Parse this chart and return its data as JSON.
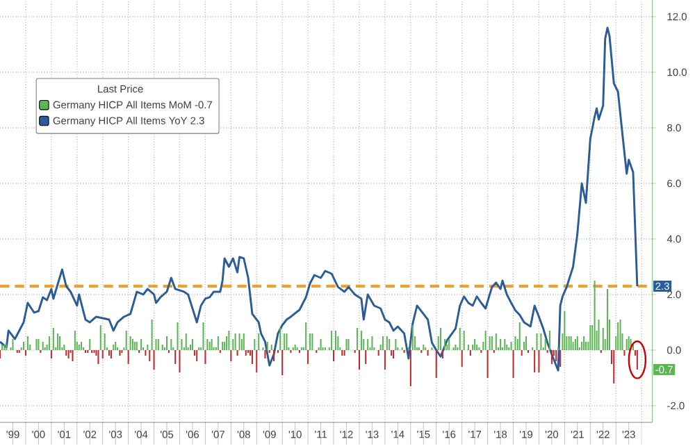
{
  "chart_data": {
    "type": "line",
    "legend_title": "Last Price",
    "legend": "top left",
    "grid": true,
    "xlim": [
      "1999-01",
      "2024-06"
    ],
    "ylim": [
      -2.6,
      12.6
    ],
    "xticks": [
      {
        "value": "2000",
        "label": null
      },
      {
        "value": "2001",
        "label": null
      },
      {
        "value": "2002",
        "label": null
      },
      {
        "value": "2003",
        "label": null
      },
      {
        "value": "2004",
        "label": null
      },
      {
        "value": "2005",
        "label": null
      },
      {
        "value": "2006",
        "label": null
      },
      {
        "value": "2007",
        "label": null
      },
      {
        "value": "2008",
        "label": null
      },
      {
        "value": "2009",
        "label": null
      },
      {
        "value": "2010",
        "label": null
      },
      {
        "value": "2011",
        "label": null
      },
      {
        "value": "2012",
        "label": null
      },
      {
        "value": "2013",
        "label": null
      },
      {
        "value": "2014",
        "label": null
      },
      {
        "value": "2015",
        "label": null
      },
      {
        "value": "2016",
        "label": null
      },
      {
        "value": "2017",
        "label": null
      },
      {
        "value": "2018",
        "label": null
      },
      {
        "value": "2019",
        "label": null
      },
      {
        "value": "2020",
        "label": null
      },
      {
        "value": "2021",
        "label": null
      },
      {
        "value": "2022",
        "label": null
      },
      {
        "value": "2023",
        "label": null
      },
      {
        "value": "2024",
        "label": null
      },
      {
        "value": "1999-07",
        "label": "'99"
      },
      {
        "value": "2000-07",
        "label": "'00"
      },
      {
        "value": "2001-07",
        "label": "'01"
      },
      {
        "value": "2002-07",
        "label": "'02"
      },
      {
        "value": "2003-07",
        "label": "'03"
      },
      {
        "value": "2004-07",
        "label": "'04"
      },
      {
        "value": "2005-07",
        "label": "'05"
      },
      {
        "value": "2006-07",
        "label": "'06"
      },
      {
        "value": "2007-07",
        "label": "'07"
      },
      {
        "value": "2008-07",
        "label": "'08"
      },
      {
        "value": "2009-07",
        "label": "'09"
      },
      {
        "value": "2010-07",
        "label": "'10"
      },
      {
        "value": "2011-07",
        "label": "'11"
      },
      {
        "value": "2012-07",
        "label": "'12"
      },
      {
        "value": "2013-07",
        "label": "'13"
      },
      {
        "value": "2014-07",
        "label": "'14"
      },
      {
        "value": "2015-07",
        "label": "'15"
      },
      {
        "value": "2016-07",
        "label": "'16"
      },
      {
        "value": "2017-07",
        "label": "'17"
      },
      {
        "value": "2018-07",
        "label": "'18"
      },
      {
        "value": "2019-07",
        "label": "'19"
      },
      {
        "value": "2020-07",
        "label": "'20"
      },
      {
        "value": "2021-07",
        "label": "'21"
      },
      {
        "value": "2022-07",
        "label": "'22"
      },
      {
        "value": "2023-07",
        "label": "'23"
      }
    ],
    "yticks": [
      {
        "value": -2,
        "label": "-2.0"
      },
      {
        "value": 0,
        "label": "0.0"
      },
      {
        "value": 2,
        "label": "2.0"
      },
      {
        "value": 4,
        "label": "4.0"
      },
      {
        "value": 6,
        "label": "6.0"
      },
      {
        "value": 8,
        "label": "8.0"
      },
      {
        "value": 10,
        "label": "10.0"
      },
      {
        "value": 12,
        "label": "12.0"
      }
    ],
    "ref_lines": [
      {
        "axis": "y",
        "value": 2.3,
        "color": "#f0a030",
        "line_style": "dashed"
      }
    ],
    "annotations": [
      {
        "text": "-0.7",
        "x": "2023-11",
        "y": -0.7
      },
      {
        "text": "2.3",
        "x": "2023-11",
        "y": 2.3
      }
    ],
    "series": [
      {
        "type": "bar",
        "name": "Germany HICP All Items MoM  -0.7",
        "color": "#5ab552",
        "x": [
          "1999-01",
          "1999-02",
          "1999-03",
          "1999-04",
          "1999-05",
          "1999-06",
          "1999-07",
          "1999-08",
          "1999-09",
          "1999-10",
          "1999-11",
          "1999-12",
          "2000-01",
          "2000-02",
          "2000-03",
          "2000-04",
          "2000-05",
          "2000-06",
          "2000-07",
          "2000-08",
          "2000-09",
          "2000-10",
          "2000-11",
          "2000-12",
          "2001-01",
          "2001-02",
          "2001-03",
          "2001-04",
          "2001-05",
          "2001-06",
          "2001-07",
          "2001-08",
          "2001-09",
          "2001-10",
          "2001-11",
          "2001-12",
          "2002-01",
          "2002-02",
          "2002-03",
          "2002-04",
          "2002-05",
          "2002-06",
          "2002-07",
          "2002-08",
          "2002-09",
          "2002-10",
          "2002-11",
          "2002-12",
          "2003-01",
          "2003-02",
          "2003-03",
          "2003-04",
          "2003-05",
          "2003-06",
          "2003-07",
          "2003-08",
          "2003-09",
          "2003-10",
          "2003-11",
          "2003-12",
          "2004-01",
          "2004-02",
          "2004-03",
          "2004-04",
          "2004-05",
          "2004-06",
          "2004-07",
          "2004-08",
          "2004-09",
          "2004-10",
          "2004-11",
          "2004-12",
          "2005-01",
          "2005-02",
          "2005-03",
          "2005-04",
          "2005-05",
          "2005-06",
          "2005-07",
          "2005-08",
          "2005-09",
          "2005-10",
          "2005-11",
          "2005-12",
          "2006-01",
          "2006-02",
          "2006-03",
          "2006-04",
          "2006-05",
          "2006-06",
          "2006-07",
          "2006-08",
          "2006-09",
          "2006-10",
          "2006-11",
          "2006-12",
          "2007-01",
          "2007-02",
          "2007-03",
          "2007-04",
          "2007-05",
          "2007-06",
          "2007-07",
          "2007-08",
          "2007-09",
          "2007-10",
          "2007-11",
          "2007-12",
          "2008-01",
          "2008-02",
          "2008-03",
          "2008-04",
          "2008-05",
          "2008-06",
          "2008-07",
          "2008-08",
          "2008-09",
          "2008-10",
          "2008-11",
          "2008-12",
          "2009-01",
          "2009-02",
          "2009-03",
          "2009-04",
          "2009-05",
          "2009-06",
          "2009-07",
          "2009-08",
          "2009-09",
          "2009-10",
          "2009-11",
          "2009-12",
          "2010-01",
          "2010-02",
          "2010-03",
          "2010-04",
          "2010-05",
          "2010-06",
          "2010-07",
          "2010-08",
          "2010-09",
          "2010-10",
          "2010-11",
          "2010-12",
          "2011-01",
          "2011-02",
          "2011-03",
          "2011-04",
          "2011-05",
          "2011-06",
          "2011-07",
          "2011-08",
          "2011-09",
          "2011-10",
          "2011-11",
          "2011-12",
          "2012-01",
          "2012-02",
          "2012-03",
          "2012-04",
          "2012-05",
          "2012-06",
          "2012-07",
          "2012-08",
          "2012-09",
          "2012-10",
          "2012-11",
          "2012-12",
          "2013-01",
          "2013-02",
          "2013-03",
          "2013-04",
          "2013-05",
          "2013-06",
          "2013-07",
          "2013-08",
          "2013-09",
          "2013-10",
          "2013-11",
          "2013-12",
          "2014-01",
          "2014-02",
          "2014-03",
          "2014-04",
          "2014-05",
          "2014-06",
          "2014-07",
          "2014-08",
          "2014-09",
          "2014-10",
          "2014-11",
          "2014-12",
          "2015-01",
          "2015-02",
          "2015-03",
          "2015-04",
          "2015-05",
          "2015-06",
          "2015-07",
          "2015-08",
          "2015-09",
          "2015-10",
          "2015-11",
          "2015-12",
          "2016-01",
          "2016-02",
          "2016-03",
          "2016-04",
          "2016-05",
          "2016-06",
          "2016-07",
          "2016-08",
          "2016-09",
          "2016-10",
          "2016-11",
          "2016-12",
          "2017-01",
          "2017-02",
          "2017-03",
          "2017-04",
          "2017-05",
          "2017-06",
          "2017-07",
          "2017-08",
          "2017-09",
          "2017-10",
          "2017-11",
          "2017-12",
          "2018-01",
          "2018-02",
          "2018-03",
          "2018-04",
          "2018-05",
          "2018-06",
          "2018-07",
          "2018-08",
          "2018-09",
          "2018-10",
          "2018-11",
          "2018-12",
          "2019-01",
          "2019-02",
          "2019-03",
          "2019-04",
          "2019-05",
          "2019-06",
          "2019-07",
          "2019-08",
          "2019-09",
          "2019-10",
          "2019-11",
          "2019-12",
          "2020-01",
          "2020-02",
          "2020-03",
          "2020-04",
          "2020-05",
          "2020-06",
          "2020-07",
          "2020-08",
          "2020-09",
          "2020-10",
          "2020-11",
          "2020-12",
          "2021-01",
          "2021-02",
          "2021-03",
          "2021-04",
          "2021-05",
          "2021-06",
          "2021-07",
          "2021-08",
          "2021-09",
          "2021-10",
          "2021-11",
          "2021-12",
          "2022-01",
          "2022-02",
          "2022-03",
          "2022-04",
          "2022-05",
          "2022-06",
          "2022-07",
          "2022-08",
          "2022-09",
          "2022-10",
          "2022-11",
          "2022-12",
          "2023-01",
          "2023-02",
          "2023-03",
          "2023-04",
          "2023-05",
          "2023-06",
          "2023-07",
          "2023-08",
          "2023-09",
          "2023-10",
          "2023-11"
        ],
        "values": [
          -0.3,
          0.2,
          0.2,
          0.2,
          null,
          0.1,
          0.4,
          null,
          -0.1,
          -0.1,
          0.1,
          0.3,
          -0.2,
          0.5,
          0.2,
          null,
          null,
          0.4,
          0.4,
          -0.1,
          0.3,
          0.1,
          0.2,
          0.5,
          -0.3,
          0.8,
          0.1,
          0.6,
          0.5,
          0.1,
          0.2,
          -0.2,
          -0.3,
          -0.1,
          -0.4,
          0.7,
          0.3,
          0.2,
          0.3,
          0.1,
          -0.1,
          -0.1,
          0.4,
          -0.1,
          -0.1,
          -0.2,
          -0.5,
          0.9,
          -0.3,
          0.6,
          0.1,
          -0.2,
          -0.3,
          0.2,
          0.3,
          0.1,
          -0.2,
          -0.1,
          0.1,
          0.7,
          -0.5,
          0.5,
          0.4,
          0.3,
          0.3,
          -0.1,
          0.4,
          0.1,
          -0.2,
          0.2,
          -0.4,
          1.1,
          -0.7,
          0.4,
          0.4,
          null,
          0.2,
          0.1,
          0.5,
          -0.1,
          0.4,
          0.1,
          -0.5,
          1.0,
          -0.8,
          0.4,
          0.1,
          0.6,
          0.1,
          0.2,
          0.4,
          -0.2,
          -0.4,
          0.1,
          0.1,
          1.0,
          -0.5,
          0.4,
          0.3,
          0.4,
          0.1,
          0.1,
          0.5,
          -0.1,
          0.3,
          0.3,
          0.5,
          0.7,
          -0.4,
          0.4,
          0.6,
          -0.2,
          0.6,
          0.4,
          0.6,
          -0.2,
          -0.1,
          -0.2,
          -0.5,
          0.4,
          -0.8,
          0.6,
          null,
          0.1,
          -0.3,
          0.3,
          -0.1,
          0.2,
          -0.4,
          null,
          -0.1,
          0.8,
          -0.9,
          0.6,
          0.6,
          0.1,
          -0.1,
          0.1,
          0.2,
          0.1,
          -0.1,
          0.1,
          0.1,
          1.0,
          -0.5,
          0.6,
          0.6,
          null,
          -0.1,
          0.1,
          0.4,
          0.1,
          0.1,
          null,
          0.1,
          0.7,
          -0.4,
          0.7,
          0.5,
          0.1,
          -0.2,
          -0.2,
          0.4,
          0.4,
          null,
          null,
          -0.1,
          0.8,
          -0.7,
          0.7,
          0.4,
          -0.5,
          0.4,
          0.1,
          0.5,
          0.1,
          null,
          -0.2,
          0.2,
          0.5,
          -0.7,
          0.5,
          0.4,
          -0.2,
          -0.3,
          0.4,
          0.1,
          null,
          0.1,
          -0.1,
          null,
          0.1,
          -1.3,
          0.9,
          0.5,
          0.1,
          0.1,
          -0.1,
          0.2,
          0.1,
          -0.2,
          null,
          0.1,
          null,
          -1.0,
          0.5,
          0.8,
          -0.3,
          0.4,
          0.2,
          0.4,
          null,
          0.1,
          0.2,
          0.1,
          0.8,
          -0.6,
          0.7,
          null,
          0.2,
          -0.2,
          0.2,
          0.4,
          0.2,
          0.1,
          -0.1,
          0.3,
          0.7,
          -1.0,
          0.5,
          0.5,
          -0.1,
          0.6,
          0.1,
          0.4,
          0.1,
          0.4,
          0.2,
          0.1,
          0.3,
          -1.0,
          0.5,
          0.4,
          1.0,
          -0.2,
          0.3,
          0.5,
          -0.1,
          null,
          0.1,
          -0.8,
          0.6,
          -0.8,
          0.6,
          0.1,
          0.4,
          -0.1,
          0.7,
          -0.5,
          -0.2,
          -0.4,
          0.1,
          -0.6,
          0.6,
          1.4,
          0.5,
          0.5,
          0.5,
          0.3,
          0.4,
          0.5,
          0.1,
          0.3,
          0.5,
          0.3,
          0.3,
          0.9,
          0.9,
          2.5,
          0.7,
          1.1,
          -0.1,
          0.8,
          0.4,
          2.2,
          1.1,
          -0.5,
          -1.2,
          0.5,
          1.0,
          1.1,
          0.6,
          -0.2,
          0.4,
          0.5,
          0.4,
          0.2,
          -0.2,
          -0.7
        ],
        "colors": [
          "#c0282d",
          "#5ab552",
          "#5ab552",
          "#5ab552",
          "#5ab552",
          "#5ab552",
          "#5ab552",
          "#5ab552",
          "#c0282d",
          "#c0282d",
          "#5ab552",
          "#5ab552",
          "#c0282d",
          "#5ab552",
          "#5ab552",
          "#5ab552",
          "#5ab552",
          "#5ab552",
          "#5ab552",
          "#c0282d",
          "#5ab552",
          "#5ab552",
          "#5ab552",
          "#5ab552",
          "#c0282d",
          "#5ab552",
          "#5ab552",
          "#5ab552",
          "#5ab552",
          "#5ab552",
          "#5ab552",
          "#c0282d",
          "#c0282d",
          "#c0282d",
          "#c0282d",
          "#5ab552",
          "#5ab552",
          "#5ab552",
          "#5ab552",
          "#5ab552",
          "#c0282d",
          "#c0282d",
          "#5ab552",
          "#c0282d",
          "#c0282d",
          "#c0282d",
          "#c0282d",
          "#5ab552",
          "#c0282d",
          "#5ab552",
          "#5ab552",
          "#c0282d",
          "#c0282d",
          "#5ab552",
          "#5ab552",
          "#5ab552",
          "#c0282d",
          "#c0282d",
          "#5ab552",
          "#5ab552",
          "#c0282d",
          "#5ab552",
          "#5ab552",
          "#5ab552",
          "#5ab552",
          "#c0282d",
          "#5ab552",
          "#5ab552",
          "#c0282d",
          "#5ab552",
          "#c0282d",
          "#5ab552",
          "#c0282d",
          "#5ab552",
          "#5ab552",
          "#5ab552",
          "#5ab552",
          "#5ab552",
          "#5ab552",
          "#c0282d",
          "#5ab552",
          "#5ab552",
          "#c0282d",
          "#5ab552",
          "#c0282d",
          "#5ab552",
          "#5ab552",
          "#5ab552",
          "#5ab552",
          "#5ab552",
          "#5ab552",
          "#c0282d",
          "#c0282d",
          "#5ab552",
          "#5ab552",
          "#5ab552",
          "#c0282d",
          "#5ab552",
          "#5ab552",
          "#5ab552",
          "#5ab552",
          "#5ab552",
          "#5ab552",
          "#c0282d",
          "#5ab552",
          "#5ab552",
          "#5ab552",
          "#5ab552",
          "#c0282d",
          "#5ab552",
          "#5ab552",
          "#c0282d",
          "#5ab552",
          "#5ab552",
          "#5ab552",
          "#c0282d",
          "#c0282d",
          "#c0282d",
          "#c0282d",
          "#5ab552",
          "#c0282d",
          "#5ab552",
          "#5ab552",
          "#5ab552",
          "#c0282d",
          "#5ab552",
          "#c0282d",
          "#5ab552",
          "#c0282d",
          "#5ab552",
          "#c0282d",
          "#5ab552",
          "#c0282d",
          "#5ab552",
          "#5ab552",
          "#5ab552",
          "#c0282d",
          "#5ab552",
          "#5ab552",
          "#5ab552",
          "#c0282d",
          "#5ab552",
          "#5ab552",
          "#5ab552",
          "#c0282d",
          "#5ab552",
          "#5ab552",
          "#5ab552",
          "#c0282d",
          "#5ab552",
          "#5ab552",
          "#5ab552",
          "#5ab552",
          "#5ab552",
          "#5ab552",
          "#5ab552",
          "#c0282d",
          "#5ab552",
          "#5ab552",
          "#5ab552",
          "#c0282d",
          "#c0282d",
          "#5ab552",
          "#5ab552",
          "#5ab552",
          "#5ab552",
          "#c0282d",
          "#5ab552",
          "#c0282d",
          "#5ab552",
          "#5ab552",
          "#c0282d",
          "#5ab552",
          "#5ab552",
          "#5ab552",
          "#5ab552",
          "#5ab552",
          "#c0282d",
          "#5ab552",
          "#5ab552",
          "#c0282d",
          "#5ab552",
          "#5ab552",
          "#c0282d",
          "#c0282d",
          "#5ab552",
          "#5ab552",
          "#5ab552",
          "#5ab552",
          "#c0282d",
          "#5ab552",
          "#5ab552",
          "#c0282d",
          "#5ab552",
          "#5ab552",
          "#5ab552",
          "#5ab552",
          "#c0282d",
          "#5ab552",
          "#5ab552",
          "#c0282d",
          "#5ab552",
          "#5ab552",
          "#5ab552",
          "#c0282d",
          "#5ab552",
          "#5ab552",
          "#c0282d",
          "#5ab552",
          "#5ab552",
          "#5ab552",
          "#5ab552",
          "#5ab552",
          "#5ab552",
          "#5ab552",
          "#5ab552",
          "#c0282d",
          "#5ab552",
          "#5ab552",
          "#5ab552",
          "#c0282d",
          "#5ab552",
          "#5ab552",
          "#5ab552",
          "#5ab552",
          "#c0282d",
          "#5ab552",
          "#5ab552",
          "#c0282d",
          "#5ab552",
          "#5ab552",
          "#c0282d",
          "#5ab552",
          "#5ab552",
          "#5ab552",
          "#5ab552",
          "#5ab552",
          "#5ab552",
          "#5ab552",
          "#5ab552",
          "#c0282d",
          "#5ab552",
          "#5ab552",
          "#5ab552",
          "#c0282d",
          "#5ab552",
          "#5ab552",
          "#c0282d",
          "#5ab552",
          "#5ab552",
          "#c0282d",
          "#5ab552",
          "#c0282d",
          "#5ab552",
          "#5ab552",
          "#5ab552",
          "#c0282d",
          "#5ab552",
          "#c0282d",
          "#c0282d",
          "#c0282d",
          "#5ab552",
          "#c0282d",
          "#5ab552",
          "#5ab552",
          "#5ab552",
          "#5ab552",
          "#5ab552",
          "#5ab552",
          "#5ab552",
          "#5ab552",
          "#5ab552",
          "#5ab552",
          "#5ab552",
          "#5ab552",
          "#5ab552",
          "#5ab552",
          "#5ab552",
          "#5ab552",
          "#5ab552",
          "#5ab552",
          "#c0282d",
          "#5ab552",
          "#5ab552",
          "#5ab552",
          "#5ab552",
          "#c0282d",
          "#c0282d",
          "#5ab552",
          "#5ab552",
          "#5ab552",
          "#5ab552",
          "#c0282d",
          "#5ab552",
          "#5ab552",
          "#5ab552",
          "#5ab552",
          "#c0282d",
          "#c0282d"
        ]
      },
      {
        "name": "Germany HICP All Items YoY  2.3",
        "color": "#2b5c97",
        "x": [
          "1999-01",
          "1999-04",
          "1999-05",
          "1999-08",
          "1999-12",
          "2000-02",
          "2000-05",
          "2000-07",
          "2000-09",
          "2000-11",
          "2001-01",
          "2001-02",
          "2001-06",
          "2001-08",
          "2001-10",
          "2002-01",
          "2002-02",
          "2002-05",
          "2002-07",
          "2002-10",
          "2003-04",
          "2003-06",
          "2003-08",
          "2003-11",
          "2004-02",
          "2004-05",
          "2004-08",
          "2004-10",
          "2005-01",
          "2005-02",
          "2005-04",
          "2005-07",
          "2005-09",
          "2005-11",
          "2006-03",
          "2006-05",
          "2006-07",
          "2006-09",
          "2006-11",
          "2007-01",
          "2007-03",
          "2007-05",
          "2007-08",
          "2007-09",
          "2007-10",
          "2007-12",
          "2008-02",
          "2008-04",
          "2008-05",
          "2008-07",
          "2008-09",
          "2008-11",
          "2009-02",
          "2009-03",
          "2009-05",
          "2009-07",
          "2009-09",
          "2009-11",
          "2010-01",
          "2010-03",
          "2010-05",
          "2010-09",
          "2010-12",
          "2011-02",
          "2011-04",
          "2011-07",
          "2011-09",
          "2011-12",
          "2012-03",
          "2012-06",
          "2012-08",
          "2012-11",
          "2013-02",
          "2013-03",
          "2013-05",
          "2013-08",
          "2013-11",
          "2014-01",
          "2014-03",
          "2014-05",
          "2014-07",
          "2014-10",
          "2014-12",
          "2015-02",
          "2015-04",
          "2015-07",
          "2015-09",
          "2015-11",
          "2016-01",
          "2016-03",
          "2016-06",
          "2016-10",
          "2016-12",
          "2017-02",
          "2017-04",
          "2017-06",
          "2017-08",
          "2017-10",
          "2017-12",
          "2018-03",
          "2018-05",
          "2018-07",
          "2018-08",
          "2018-10",
          "2018-12",
          "2019-02",
          "2019-04",
          "2019-06",
          "2019-09",
          "2019-11",
          "2020-01",
          "2020-03",
          "2020-05",
          "2020-07",
          "2020-10",
          "2020-11",
          "2020-12",
          "2021-02",
          "2021-05",
          "2021-07",
          "2021-09",
          "2021-11",
          "2022-01",
          "2022-03",
          "2022-04",
          "2022-05",
          "2022-07",
          "2022-08",
          "2022-09",
          "2022-10",
          "2022-12",
          "2023-02",
          "2023-04",
          "2023-06",
          "2023-07",
          "2023-09",
          "2023-11"
        ],
        "values": [
          0.3,
          0.1,
          0.7,
          0.4,
          1.0,
          1.7,
          1.35,
          1.4,
          1.9,
          1.8,
          2.2,
          1.85,
          2.9,
          2.3,
          2.1,
          1.6,
          2.0,
          1.1,
          1.0,
          1.2,
          1.1,
          0.7,
          1.0,
          1.2,
          1.3,
          2.1,
          2.0,
          2.2,
          2.0,
          1.7,
          1.9,
          2.1,
          2.6,
          2.2,
          2.1,
          2.0,
          1.5,
          1.0,
          1.6,
          1.85,
          1.9,
          2.1,
          2.1,
          2.5,
          3.3,
          3.0,
          3.3,
          2.8,
          3.35,
          3.3,
          2.6,
          1.3,
          1.0,
          0.6,
          0.3,
          -0.55,
          -0.15,
          0.6,
          0.9,
          1.1,
          1.2,
          1.45,
          1.9,
          2.4,
          2.7,
          2.6,
          2.85,
          2.75,
          2.27,
          2.1,
          2.27,
          2.0,
          1.85,
          1.1,
          2.0,
          1.6,
          1.5,
          1.1,
          1.0,
          0.7,
          0.85,
          0.6,
          -0.3,
          0.95,
          1.6,
          1.3,
          1.1,
          0.27,
          0.0,
          -0.23,
          0.35,
          0.77,
          1.6,
          1.93,
          1.7,
          1.6,
          1.93,
          1.7,
          1.5,
          2.27,
          2.43,
          2.2,
          2.5,
          2.0,
          1.7,
          1.43,
          1.27,
          1.0,
          0.85,
          1.6,
          1.2,
          0.77,
          0.27,
          -0.15,
          -0.73,
          1.6,
          1.93,
          2.27,
          3.0,
          4.2,
          6.0,
          5.3,
          7.6,
          8.4,
          8.7,
          8.3,
          8.8,
          11.2,
          11.6,
          11.3,
          9.6,
          9.3,
          7.8,
          6.35,
          6.85,
          6.4,
          2.3
        ]
      }
    ]
  }
}
